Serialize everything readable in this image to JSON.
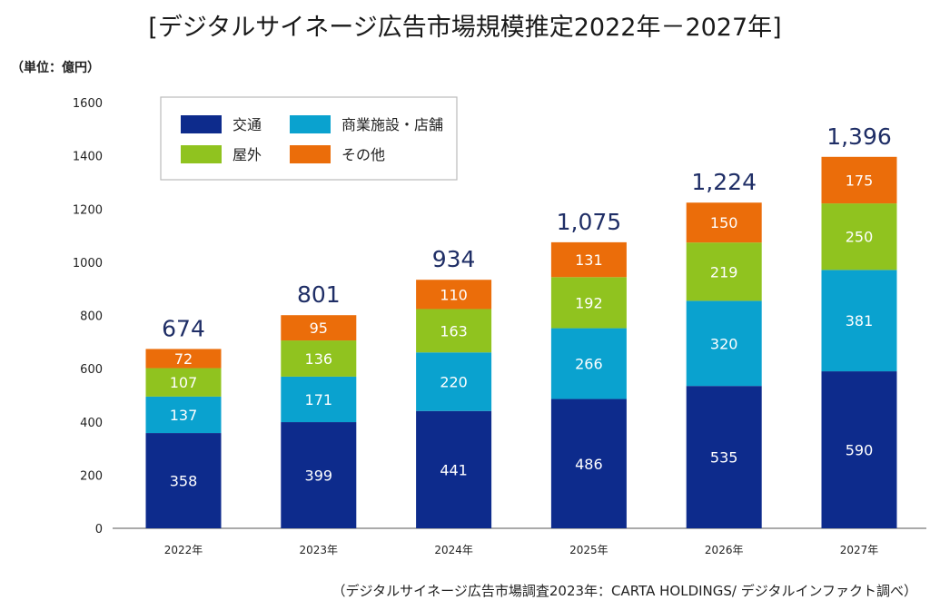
{
  "chart_data": {
    "type": "bar",
    "stacked": true,
    "title": "[デジタルサイネージ広告市場規模推定2022年－2027年]",
    "unit_label": "（単位：億円）",
    "source": "（デジタルサイネージ広告市場調査2023年：CARTA HOLDINGS/ デジタルインファクト調べ）",
    "xlabel": "",
    "ylabel": "",
    "ylim": [
      0,
      1600
    ],
    "yticks": [
      0,
      200,
      400,
      600,
      800,
      1000,
      1200,
      1400,
      1600
    ],
    "grid": false,
    "legend_position": "top-left",
    "categories": [
      "2022年",
      "2023年",
      "2024年",
      "2025年",
      "2026年",
      "2027年"
    ],
    "series": [
      {
        "name": "交通",
        "color": "#0d2b8c",
        "values": [
          358,
          399,
          441,
          486,
          535,
          590
        ]
      },
      {
        "name": "商業施設・店舗",
        "color": "#0aa2cf",
        "values": [
          137,
          171,
          220,
          266,
          320,
          381
        ]
      },
      {
        "name": "屋外",
        "color": "#90c31f",
        "values": [
          107,
          136,
          163,
          192,
          219,
          250
        ]
      },
      {
        "name": "その他",
        "color": "#eb6d0a",
        "values": [
          72,
          95,
          110,
          131,
          150,
          175
        ]
      }
    ],
    "totals": [
      "674",
      "801",
      "934",
      "1,075",
      "1,224",
      "1,396"
    ],
    "legend_order": [
      0,
      1,
      2,
      3
    ]
  }
}
